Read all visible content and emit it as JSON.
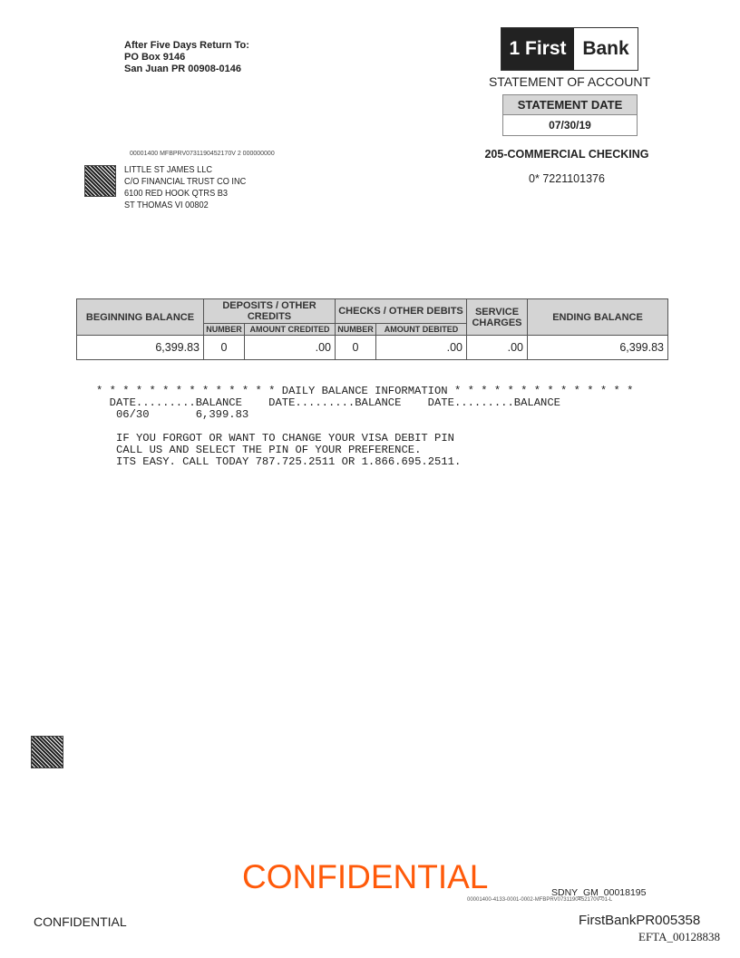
{
  "return_address": {
    "line1": "After Five Days Return To:",
    "line2": "PO Box 9146",
    "line3": "San Juan PR 00908-0146"
  },
  "logo": {
    "part1": "1 First",
    "part2": "Bank"
  },
  "statement_title": "STATEMENT OF ACCOUNT",
  "statement_date": {
    "label": "STATEMENT DATE",
    "value": "07/30/19"
  },
  "account": {
    "type": "205-COMMERCIAL CHECKING",
    "number": "0*  7221101376"
  },
  "mail_code": "00001400  MFBPRV0731190452170V  2  000000000",
  "recipient": {
    "line1": "LITTLE ST JAMES LLC",
    "line2": "C/O FINANCIAL TRUST CO INC",
    "line3": "6100 RED HOOK QTRS B3",
    "line4": "ST THOMAS VI  00802"
  },
  "summary": {
    "headers": {
      "beginning": "BEGINNING BALANCE",
      "deposits": "DEPOSITS / OTHER CREDITS",
      "checks": "CHECKS / OTHER DEBITS",
      "service": "SERVICE CHARGES",
      "ending": "ENDING BALANCE",
      "number": "NUMBER",
      "amount_credited": "AMOUNT  CREDITED",
      "amount_debited": "AMOUNT DEBITED"
    },
    "values": {
      "beginning": "6,399.83",
      "deposit_number": "0",
      "amount_credited": ".00",
      "check_number": "0",
      "amount_debited": ".00",
      "service": ".00",
      "ending": "6,399.83"
    }
  },
  "daily_balance": {
    "title_line": "* * * * * * * * * * * * * * DAILY BALANCE INFORMATION * * * * * * * * * * * * * *",
    "header_line": "  DATE.........BALANCE    DATE.........BALANCE    DATE.........BALANCE",
    "row": "   06/30       6,399.83"
  },
  "message": {
    "line1": "IF YOU FORGOT OR WANT TO CHANGE YOUR VISA DEBIT PIN",
    "line2": "CALL US AND SELECT THE PIN OF YOUR PREFERENCE.",
    "line3": "ITS EASY. CALL TODAY 787.725.2511 OR 1.866.695.2511."
  },
  "footer": {
    "confidential_stamp": "CONFIDENTIAL",
    "bates": "SDNY_GM_00018195",
    "doc_code": "00001400-4133-0001-0002-MFBPRV0731190452170V-01-L",
    "confidential": "CONFIDENTIAL",
    "firstbank_id": "FirstBankPR005358",
    "efta": "EFTA_00128838"
  },
  "colors": {
    "confidential_stamp": "#ff5a0a"
  }
}
